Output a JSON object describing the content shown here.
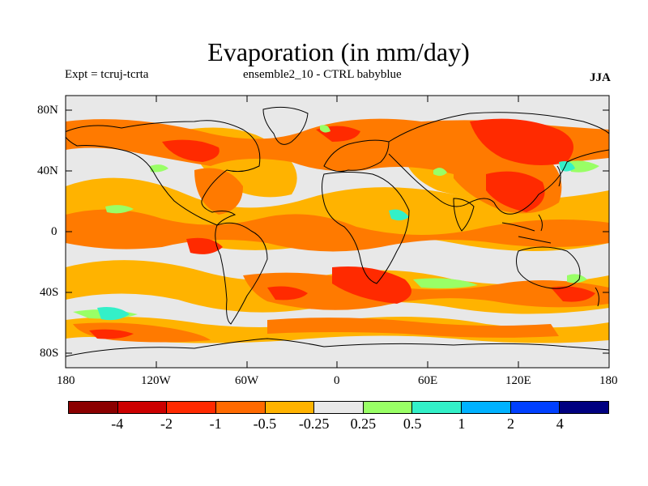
{
  "title": "Evaporation (in mm/day)",
  "subtitle_left": "Expt = tcruj-tcrta",
  "subtitle_center": "ensemble2_10 - CTRL babyblue",
  "season": "JJA",
  "axes": {
    "y_ticks": [
      "80N",
      "40N",
      "0",
      "40S",
      "80S"
    ],
    "x_ticks": [
      "180",
      "120W",
      "60W",
      "0",
      "60E",
      "120E",
      "180"
    ]
  },
  "colorbar": {
    "colors": [
      "#8b0000",
      "#cc0000",
      "#ff2a00",
      "#ff6a00",
      "#ffb300",
      "#e8e8e8",
      "#99ff66",
      "#33f0c8",
      "#00b2ff",
      "#0040ff",
      "#000080"
    ],
    "labels": [
      "-4",
      "-2",
      "-1",
      "-0.5",
      "-0.25",
      "0.25",
      "0.5",
      "1",
      "2",
      "4"
    ]
  },
  "map_colors": {
    "background": "#e8e8e8",
    "orange_light": "#ffb300",
    "orange": "#ff7a00",
    "red": "#ff2a00",
    "green": "#99ff66",
    "cyan": "#33f0c8"
  }
}
